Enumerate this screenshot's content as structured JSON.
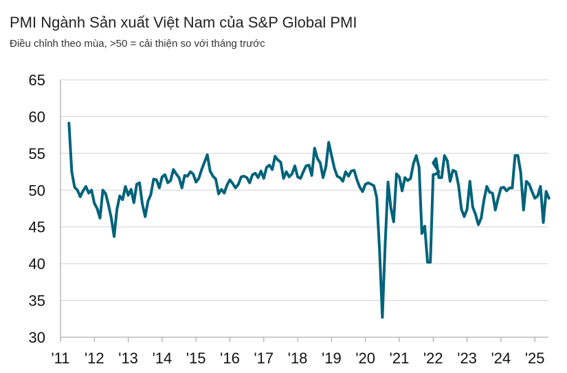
{
  "title": "PMI Ngành Sản xuất Việt Nam của S&P Global PMI",
  "subtitle": "Điều chỉnh theo mùa, >50 = cải thiện so với tháng trước",
  "colors": {
    "line": "#00637a",
    "grid": "#d0d0d0",
    "axis": "#999999",
    "text": "#111111"
  },
  "chart_data": {
    "type": "line",
    "title": "PMI Ngành Sản xuất Việt Nam của S&P Global PMI",
    "subtitle": "Điều chỉnh theo mùa, >50 = cải thiện so với tháng trước",
    "xlabel": "",
    "ylabel": "",
    "ylim": [
      30,
      65
    ],
    "grid": "horizontal",
    "legend": "none",
    "y_ticks": [
      "30",
      "35",
      "40",
      "45",
      "50",
      "55",
      "60",
      "65"
    ],
    "x_ticks": [
      "'11",
      "'12",
      "'13",
      "'14",
      "'15",
      "'16",
      "'17",
      "'18",
      "'19",
      "'20",
      "'21",
      "'22",
      "'23",
      "'24",
      "'25"
    ],
    "series": [
      {
        "start": "2011-04",
        "frequency": "monthly",
        "values": [
          59.1,
          52.5,
          50.4,
          50.0,
          49.1,
          49.9,
          50.5,
          49.6,
          50.0,
          48.2,
          47.5,
          46.2,
          50.0,
          49.5,
          48.0,
          46.2,
          43.7,
          47.4,
          49.2,
          48.7,
          50.5,
          49.3,
          50.1,
          48.3,
          50.8,
          51.0,
          48.1,
          46.4,
          48.5,
          49.4,
          51.5,
          51.4,
          50.3,
          51.8,
          52.1,
          51.0,
          51.3,
          52.8,
          52.2,
          51.7,
          50.3,
          52.0,
          51.9,
          52.5,
          52.2,
          51.1,
          51.6,
          52.8,
          53.8,
          54.8,
          52.6,
          51.9,
          51.5,
          49.5,
          50.1,
          49.6,
          50.7,
          51.4,
          50.9,
          50.3,
          50.8,
          51.8,
          51.9,
          51.7,
          51.0,
          52.1,
          52.3,
          51.7,
          52.6,
          51.6,
          53.1,
          53.4,
          52.8,
          54.6,
          54.1,
          53.8,
          51.6,
          52.5,
          51.8,
          52.2,
          53.3,
          51.8,
          51.6,
          52.5,
          53.3,
          53.4,
          52.0,
          55.7,
          54.3,
          53.7,
          51.7,
          53.2,
          56.5,
          54.7,
          53.0,
          51.9,
          51.7,
          51.2,
          52.5,
          51.9,
          52.6,
          52.7,
          51.4,
          50.4,
          49.8,
          50.8,
          51.0,
          50.8,
          50.6,
          49.0,
          41.9,
          32.7,
          42.7,
          51.1,
          47.6,
          45.7,
          52.2,
          51.8,
          49.9,
          51.7,
          51.3,
          51.6,
          53.6,
          54.7,
          53.1,
          44.1,
          45.1,
          40.2,
          40.2,
          52.1,
          52.2,
          52.5
        ]
      },
      {
        "start": "2022-01",
        "frequency": "monthly",
        "values": [
          53.7,
          54.3,
          51.7,
          51.7,
          54.7,
          54.0,
          51.2,
          52.7,
          52.5,
          50.6,
          47.4,
          46.4,
          47.4,
          51.2,
          47.7,
          46.7,
          45.3,
          46.2,
          48.7,
          50.5,
          49.7,
          49.6,
          47.3,
          48.9,
          50.3,
          50.4,
          49.9,
          50.3,
          50.3,
          54.7,
          54.7,
          52.4,
          47.3,
          51.2,
          50.8,
          49.8,
          48.9,
          49.2,
          50.5,
          45.6,
          49.8,
          48.9
        ]
      }
    ]
  }
}
